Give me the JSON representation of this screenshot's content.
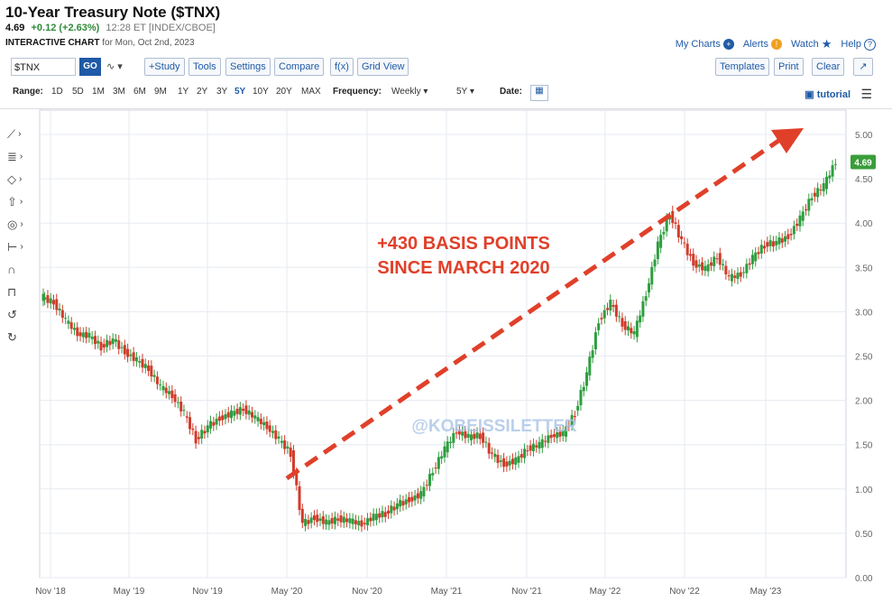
{
  "header": {
    "title": "10-Year Treasury Note ($TNX)",
    "last": "4.69",
    "change": "+0.12 (+2.63%)",
    "meta": "12:28 ET [INDEX/CBOE]",
    "chart_kind": "INTERACTIVE CHART",
    "chart_date": "for Mon, Oct 2nd, 2023"
  },
  "toplinks": {
    "my_charts": "My Charts",
    "alerts": "Alerts",
    "watch": "Watch",
    "help": "Help"
  },
  "toolbar": {
    "symbol": "$TNX",
    "go": "GO",
    "study": "+Study",
    "tools": "Tools",
    "settings": "Settings",
    "compare": "Compare",
    "fx": "f(x)",
    "grid_view": "Grid View",
    "templates": "Templates",
    "print": "Print",
    "clear": "Clear"
  },
  "rangebar": {
    "range_label": "Range:",
    "ranges": [
      "1D",
      "5D",
      "1M",
      "3M",
      "6M",
      "9M",
      "1Y",
      "2Y",
      "3Y",
      "5Y",
      "10Y",
      "20Y",
      "MAX"
    ],
    "selected": "5Y",
    "frequency_label": "Frequency:",
    "frequency": "Weekly",
    "period": "5Y",
    "date_label": "Date:",
    "tutorial": "tutorial"
  },
  "colors": {
    "up": "#2e9e3f",
    "down": "#d23b2b",
    "accent": "#1f5aa6",
    "arrow": "#e0402a",
    "last_badge": "#3a9d3a"
  },
  "chart_data": {
    "type": "line",
    "x_labels": [
      "Nov '18",
      "May '19",
      "Nov '19",
      "May '20",
      "Nov '20",
      "May '21",
      "Nov '21",
      "May '22",
      "Nov '22",
      "May '23"
    ],
    "y_ticks": [
      "5.00",
      "4.50",
      "4.00",
      "3.50",
      "3.00",
      "2.50",
      "2.00",
      "1.50",
      "1.00",
      "0.50",
      "0.00"
    ],
    "ylim": [
      0,
      5.0
    ],
    "series": [
      {
        "name": "$TNX",
        "values": [
          3.16,
          3.1,
          2.9,
          2.75,
          2.72,
          2.6,
          2.68,
          2.55,
          2.45,
          2.35,
          2.15,
          2.05,
          1.85,
          1.55,
          1.7,
          1.8,
          1.85,
          1.9,
          1.8,
          1.7,
          1.55,
          1.4,
          0.6,
          0.68,
          0.62,
          0.66,
          0.64,
          0.6,
          0.68,
          0.72,
          0.82,
          0.88,
          0.94,
          1.2,
          1.45,
          1.65,
          1.58,
          1.6,
          1.38,
          1.28,
          1.32,
          1.45,
          1.5,
          1.6,
          1.62,
          1.85,
          2.3,
          2.9,
          3.1,
          2.85,
          2.75,
          3.2,
          3.75,
          4.1,
          3.8,
          3.55,
          3.48,
          3.62,
          3.38,
          3.42,
          3.6,
          3.75,
          3.78,
          3.85,
          4.05,
          4.3,
          4.42,
          4.69
        ]
      }
    ],
    "last_value": "4.69",
    "annotation": [
      "+430 BASIS POINTS",
      "SINCE MARCH 2020"
    ],
    "watermark": "@KOBEISSILETTER"
  }
}
